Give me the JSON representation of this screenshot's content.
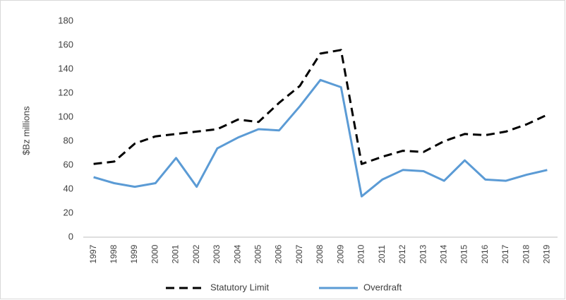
{
  "chart_data": {
    "type": "line",
    "y_label": "$Bz millions",
    "categories": [
      "1997",
      "1998",
      "1999",
      "2000",
      "2001",
      "2002",
      "2003",
      "2004",
      "2005",
      "2006",
      "2007",
      "2008",
      "2009",
      "2010",
      "2011",
      "2012",
      "2013",
      "2014",
      "2015",
      "2016",
      "2017",
      "2018",
      "2019"
    ],
    "series": [
      {
        "name": "Statutory Limit",
        "color": "#000000",
        "dashed": true,
        "values": [
          61,
          63,
          78,
          84,
          86,
          88,
          90,
          98,
          96,
          112,
          126,
          153,
          156,
          61,
          67,
          72,
          71,
          80,
          86,
          85,
          88,
          94,
          102
        ]
      },
      {
        "name": "Overdraft",
        "color": "#5b9bd5",
        "dashed": false,
        "values": [
          50,
          45,
          42,
          45,
          66,
          42,
          74,
          83,
          90,
          89,
          109,
          131,
          125,
          34,
          48,
          56,
          55,
          47,
          64,
          48,
          47,
          52,
          56
        ]
      }
    ],
    "ylim": [
      0,
      180
    ],
    "yticks": [
      0,
      20,
      40,
      60,
      80,
      100,
      120,
      140,
      160,
      180
    ],
    "grid": false,
    "legend": "bottom"
  }
}
